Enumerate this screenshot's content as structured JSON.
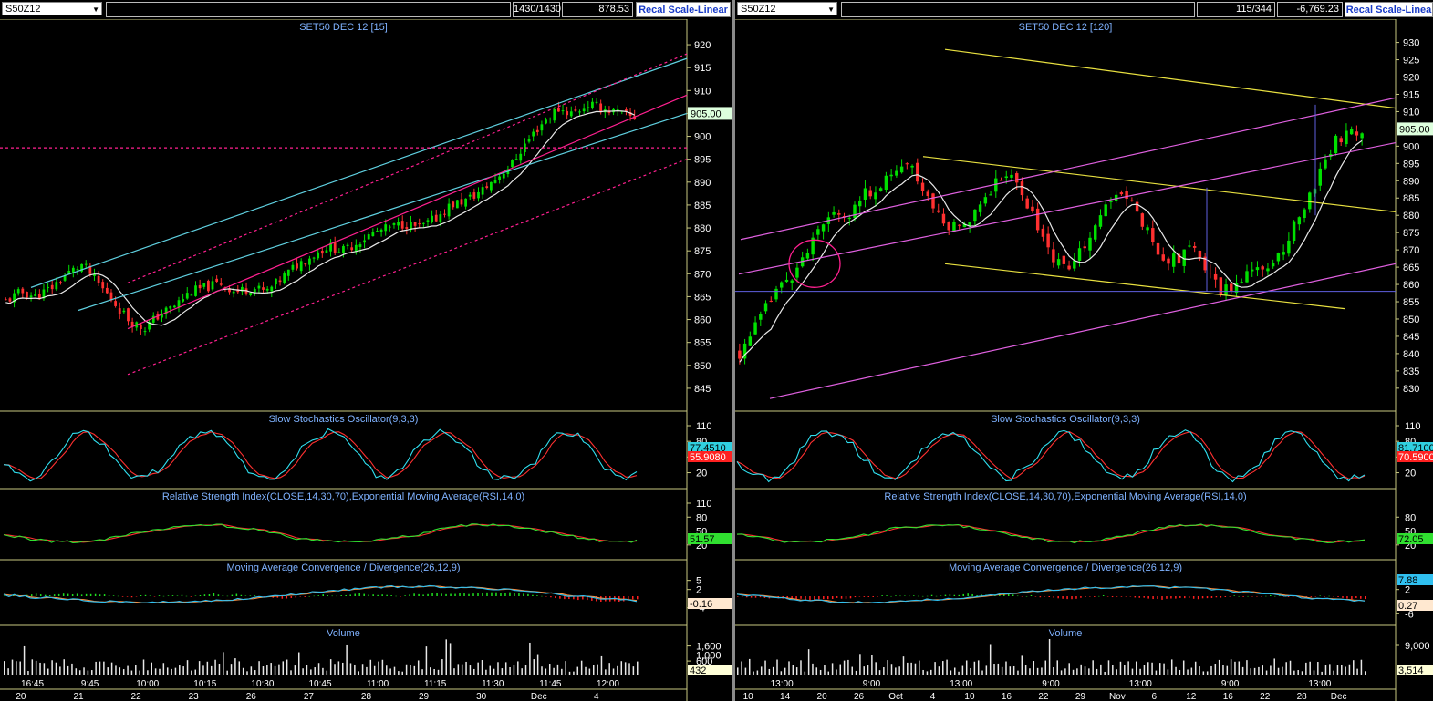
{
  "left": {
    "symbol": "S50Z12",
    "counter": "1430/1430",
    "last_value": "878.53",
    "recal_label": "Recal Scale-Linear",
    "title": "SET50 DEC 12  [15]",
    "price_ticks": [
      "920",
      "915",
      "910",
      "905",
      "900",
      "895",
      "890",
      "885",
      "880",
      "875",
      "870",
      "865",
      "860",
      "855",
      "850",
      "845"
    ],
    "price_marker": "905.00",
    "stoch_title": "Slow Stochastics Oscillator(9,3,3)",
    "stoch_ticks": [
      "110",
      "80",
      "50",
      "20"
    ],
    "stoch_markers": [
      "77.4510",
      "55.9080"
    ],
    "rsi_title": "Relative Strength Index(CLOSE,14,30,70),Exponential Moving Average(RSI,14,0)",
    "rsi_ticks": [
      "110",
      "80",
      "50",
      "20"
    ],
    "rsi_marker": "51.57",
    "macd_title": "Moving Average Convergence / Divergence(26,12,9)",
    "macd_ticks": [
      "5",
      "2",
      "-4"
    ],
    "macd_marker": "-0.16",
    "vol_title": "Volume",
    "vol_ticks": [
      "1,600",
      "1,000",
      "600"
    ],
    "vol_marker": "432",
    "time_labels": [
      "16:45",
      "9:45",
      "10:00",
      "10:15",
      "10:30",
      "10:45",
      "11:00",
      "11:15",
      "11:30",
      "11:45",
      "12:00"
    ],
    "date_labels": [
      "20",
      "21",
      "22",
      "23",
      "26",
      "27",
      "28",
      "29",
      "30",
      "Dec",
      "4"
    ]
  },
  "right": {
    "symbol": "S50Z12",
    "counter": "115/344",
    "last_value": "-6,769.23",
    "recal_label": "Recal Scale-Linea",
    "title": "SET50 DEC 12  [120]",
    "price_ticks": [
      "930",
      "925",
      "920",
      "915",
      "910",
      "905",
      "900",
      "895",
      "890",
      "885",
      "880",
      "875",
      "870",
      "865",
      "860",
      "855",
      "850",
      "845",
      "840",
      "835",
      "830"
    ],
    "price_marker": "905.00",
    "stoch_title": "Slow Stochastics Oscillator(9,3,3)",
    "stoch_ticks": [
      "110",
      "80",
      "50",
      "20"
    ],
    "stoch_markers": [
      "81.7100",
      "70.5900"
    ],
    "rsi_title": "Relative Strength Index(CLOSE,14,30,70),Exponential Moving Average(RSI,14,0)",
    "rsi_ticks": [
      "80",
      "50",
      "20"
    ],
    "rsi_marker": "72.05",
    "macd_title": "Moving Average Convergence / Divergence(26,12,9)",
    "macd_ticks": [
      "2",
      "-6"
    ],
    "macd_markers": [
      "7.88",
      "0.27"
    ],
    "vol_title": "Volume",
    "vol_ticks": [
      "9,000"
    ],
    "vol_marker": "3,514",
    "time_labels": [
      "13:00",
      "9:00",
      "13:00",
      "9:00",
      "13:00",
      "9:00",
      "13:00"
    ],
    "date_labels": [
      "10",
      "14",
      "20",
      "26",
      "Oct",
      "4",
      "10",
      "16",
      "22",
      "29",
      "Nov",
      "6",
      "12",
      "16",
      "22",
      "28",
      "Dec"
    ]
  },
  "chart_data": [
    {
      "type": "candlestick",
      "title": "SET50 DEC 12  [15]",
      "ylim": [
        842,
        922
      ],
      "close": [
        864,
        866,
        865,
        867,
        870,
        872,
        868,
        864,
        860,
        858,
        861,
        863,
        866,
        867,
        868,
        866,
        867,
        866,
        869,
        872,
        874,
        876,
        875,
        877,
        879,
        880,
        881,
        880,
        882,
        885,
        886,
        888,
        891,
        894,
        899,
        903,
        906,
        905,
        907,
        906,
        905,
        904
      ],
      "ma_line": true,
      "colors": {
        "up": "#00e000",
        "down": "#ff3030",
        "channel": "#5fd0e0",
        "regression": "#ff2090"
      }
    },
    {
      "type": "candlestick",
      "title": "SET50 DEC 12  [120]",
      "ylim": [
        826,
        932
      ],
      "close": [
        840,
        846,
        852,
        858,
        862,
        866,
        872,
        878,
        882,
        880,
        885,
        888,
        890,
        893,
        894,
        888,
        882,
        876,
        878,
        880,
        885,
        890,
        892,
        888,
        880,
        872,
        866,
        864,
        870,
        876,
        882,
        886,
        884,
        878,
        872,
        866,
        868,
        872,
        866,
        860,
        858,
        862,
        866,
        862,
        868,
        874,
        880,
        888,
        896,
        902,
        904,
        905
      ],
      "ma_line": true,
      "colors": {
        "up": "#00e000",
        "down": "#ff3030",
        "channel": "#e060e0",
        "trend": "#e8e040"
      }
    }
  ]
}
